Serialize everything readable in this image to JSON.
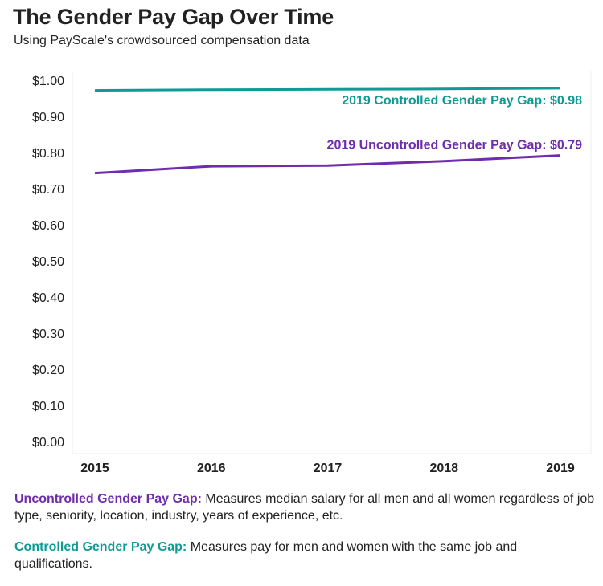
{
  "header": {
    "title": "The Gender Pay Gap Over Time",
    "subtitle": "Using PayScale's crowdsourced compensation data"
  },
  "colors": {
    "uncontrolled": "#6f2dab",
    "controlled": "#0f9b94",
    "grid": "#ececec"
  },
  "chart_data": {
    "type": "line",
    "title": "The Gender Pay Gap Over Time",
    "subtitle": "Using PayScale's crowdsourced compensation data",
    "x": [
      2015,
      2016,
      2017,
      2018,
      2019
    ],
    "x_tick_labels": [
      "2015",
      "2016",
      "2017",
      "2018",
      "2019"
    ],
    "y_tick_values": [
      0.0,
      0.1,
      0.2,
      0.3,
      0.4,
      0.5,
      0.6,
      0.7,
      0.8,
      0.9,
      1.0
    ],
    "y_tick_labels": [
      "$0.00",
      "$0.10",
      "$0.20",
      "$0.30",
      "$0.40",
      "$0.50",
      "$0.60",
      "$0.70",
      "$0.80",
      "$0.90",
      "$1.00"
    ],
    "ylim": [
      0,
      1.0
    ],
    "grid": false,
    "series": [
      {
        "key": "controlled",
        "values": [
          0.972,
          0.974,
          0.975,
          0.976,
          0.978
        ]
      },
      {
        "key": "uncontrolled",
        "values": [
          0.743,
          0.762,
          0.764,
          0.776,
          0.792
        ]
      }
    ],
    "annotations": [
      {
        "series": "controlled",
        "text": "2019 Controlled Gender Pay Gap: $0.98"
      },
      {
        "series": "uncontrolled",
        "text": "2019 Uncontrolled Gender Pay Gap: $0.79"
      }
    ]
  },
  "notes": {
    "uncontrolled_term": "Uncontrolled Gender Pay Gap:",
    "uncontrolled_text": " Measures median salary for all men and all women regardless of job type, seniority, location, industry, years of experience, etc.",
    "controlled_term": "Controlled Gender Pay Gap:",
    "controlled_text": " Measures pay for men and women with the same job and qualifications."
  }
}
